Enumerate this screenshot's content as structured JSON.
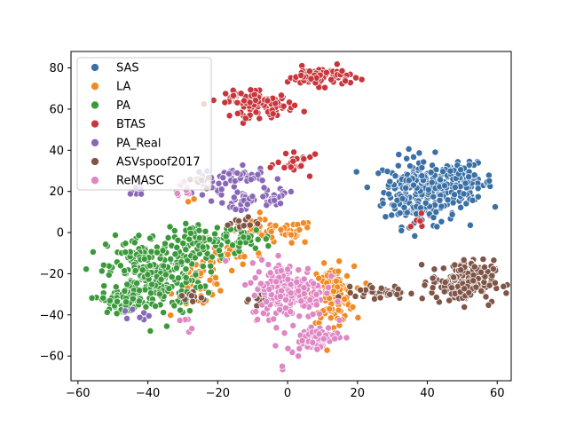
{
  "chart_data": {
    "type": "scatter",
    "title": "",
    "xlabel": "",
    "ylabel": "",
    "xlim": [
      -62,
      64
    ],
    "ylim": [
      -72,
      88
    ],
    "xticks": [
      -60,
      -40,
      -20,
      0,
      20,
      40,
      60
    ],
    "yticks": [
      -60,
      -40,
      -20,
      0,
      20,
      40,
      60,
      80
    ],
    "grid": false,
    "legend_position": "top-left",
    "series": [
      {
        "name": "SAS",
        "color": "#3a70a6",
        "clusters": [
          [
            38,
            20,
            7,
            11,
            250
          ],
          [
            51,
            24,
            5,
            6,
            80
          ],
          [
            34,
            25,
            3,
            4,
            30
          ]
        ]
      },
      {
        "name": "LA",
        "color": "#f28a22",
        "clusters": [
          [
            -5,
            0,
            9,
            4,
            60
          ],
          [
            -25,
            -23,
            5,
            9,
            60
          ],
          [
            13,
            -30,
            4,
            9,
            120
          ],
          [
            -28,
            15,
            1,
            2,
            2
          ],
          [
            -16,
            -10,
            6,
            4,
            25
          ]
        ]
      },
      {
        "name": "PA",
        "color": "#3a9a3a",
        "clusters": [
          [
            -38,
            -20,
            9,
            13,
            300
          ],
          [
            -47,
            -33,
            4,
            4,
            60
          ],
          [
            -16,
            -3,
            8,
            4,
            50
          ],
          [
            -25,
            -5,
            4,
            6,
            40
          ]
        ]
      },
      {
        "name": "BTAS",
        "color": "#c8353a",
        "clusters": [
          [
            -7,
            62,
            6,
            4,
            70
          ],
          [
            -14,
            65,
            4,
            4,
            30
          ],
          [
            9,
            76,
            6,
            3,
            80
          ],
          [
            3,
            33,
            4,
            3,
            25
          ],
          [
            0,
            -31,
            2,
            3,
            10
          ],
          [
            37,
            5,
            2,
            2,
            6
          ]
        ]
      },
      {
        "name": "PA_Real",
        "color": "#8a68b8",
        "clusters": [
          [
            -14,
            27,
            5,
            3,
            40
          ],
          [
            -12,
            15,
            4,
            4,
            30
          ],
          [
            -22,
            22,
            3,
            4,
            20
          ],
          [
            -4,
            18,
            3,
            3,
            20
          ],
          [
            -43,
            21,
            2,
            2,
            10
          ],
          [
            -42,
            -40,
            2,
            2,
            8
          ]
        ]
      },
      {
        "name": "ASVspoof2017",
        "color": "#7e5547",
        "clusters": [
          [
            50,
            -24,
            6,
            7,
            180
          ],
          [
            27,
            -29,
            5,
            2,
            40
          ],
          [
            -8,
            -32,
            3,
            2,
            15
          ],
          [
            -13,
            5,
            3,
            3,
            12
          ],
          [
            -28,
            -32,
            3,
            2,
            12
          ],
          [
            -22,
            25,
            3,
            2,
            10
          ]
        ]
      },
      {
        "name": "ReMASC",
        "color": "#df86c4",
        "clusters": [
          [
            0,
            -28,
            7,
            9,
            220
          ],
          [
            7,
            -51,
            5,
            4,
            70
          ],
          [
            -29,
            -45,
            1,
            2,
            5
          ],
          [
            -1,
            -66,
            1,
            1,
            2
          ],
          [
            -30,
            21,
            2,
            3,
            10
          ]
        ]
      }
    ]
  }
}
